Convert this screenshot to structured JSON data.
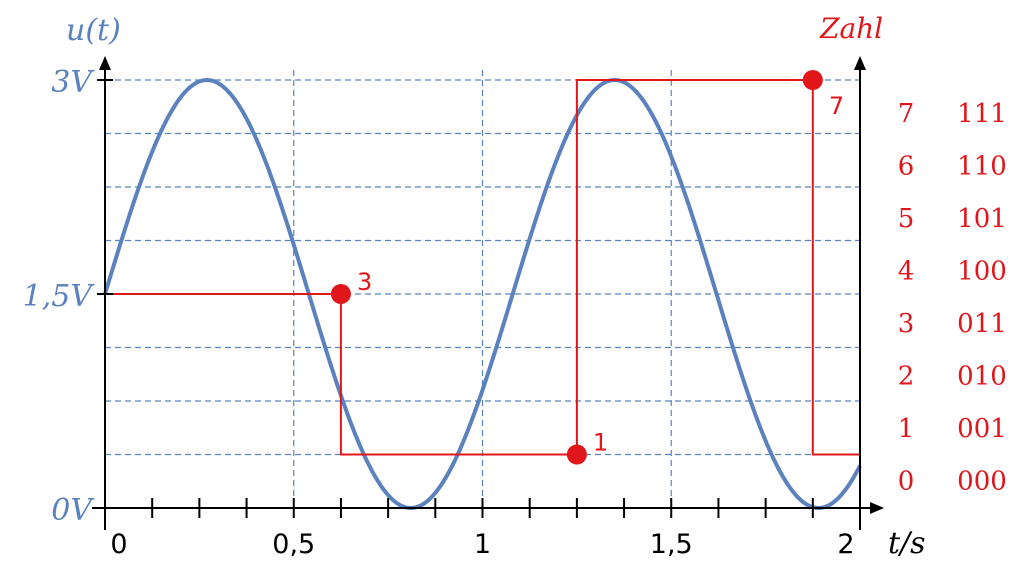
{
  "chart_data": {
    "type": "line",
    "left_axis": {
      "title": "u(t)",
      "tick_labels": [
        "3V",
        "1,5V",
        "0V"
      ],
      "tick_values": [
        3,
        1.5,
        0
      ],
      "ylim": [
        0,
        3
      ]
    },
    "right_axis": {
      "title": "Zahl",
      "levels": [
        {
          "number": "7",
          "binary": "111"
        },
        {
          "number": "6",
          "binary": "110"
        },
        {
          "number": "5",
          "binary": "101"
        },
        {
          "number": "4",
          "binary": "100"
        },
        {
          "number": "3",
          "binary": "011"
        },
        {
          "number": "2",
          "binary": "010"
        },
        {
          "number": "1",
          "binary": "001"
        },
        {
          "number": "0",
          "binary": "000"
        }
      ]
    },
    "x_axis": {
      "title": "t/s",
      "tick_labels": [
        "0",
        "0,5",
        "1",
        "1,5",
        "2"
      ],
      "tick_values": [
        0,
        0.5,
        1,
        1.5,
        2
      ],
      "xlim": [
        0,
        2
      ],
      "minor_step": 0.125
    },
    "signal": {
      "function": "u(t) = 1.5 + 1.5*sin(2*pi*t/1.08)",
      "amplitude": 1.5,
      "offset": 1.5,
      "period": 1.08,
      "color": "#5B82BE"
    },
    "samples": [
      {
        "t": 0.625,
        "level": 3,
        "label": "3"
      },
      {
        "t": 1.25,
        "level": 1,
        "label": "1"
      },
      {
        "t": 1.875,
        "level": 7,
        "label": "7"
      }
    ],
    "step_line": [
      {
        "t": 0,
        "level": 4
      },
      {
        "t": 0.625,
        "level": 4
      },
      {
        "t": 0.625,
        "level": 1
      },
      {
        "t": 1.25,
        "level": 1
      },
      {
        "t": 1.25,
        "level": 8
      },
      {
        "t": 1.875,
        "level": 8
      },
      {
        "t": 1.875,
        "level": 1
      },
      {
        "t": 2,
        "level": 1
      }
    ],
    "grid": true,
    "colors": {
      "signal": "#5B82BE",
      "quantized": "#E0161B",
      "grid": "#5B82BE",
      "axis": "#000000"
    }
  }
}
